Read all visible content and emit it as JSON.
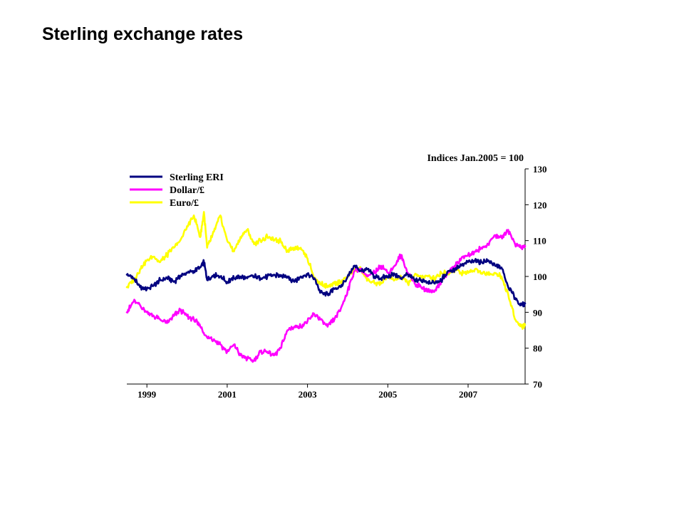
{
  "slide": {
    "title": "Sterling exchange rates"
  },
  "chart_data": {
    "type": "line",
    "title": "",
    "ylabel": "Indices Jan.2005 = 100",
    "xlabel": "",
    "ylim": [
      70,
      130
    ],
    "yticks": [
      130,
      120,
      110,
      100,
      90,
      80,
      70
    ],
    "xlim": [
      1998.5,
      2008.42
    ],
    "xticks": [
      1999,
      2001,
      2003,
      2005,
      2007
    ],
    "y_axis_side": "right",
    "grid": false,
    "legend_position": "top-left",
    "series": [
      {
        "name": "Sterling ERI",
        "color": "#000080",
        "x": [
          1998.5,
          1998.67,
          1998.83,
          1999.0,
          1999.17,
          1999.33,
          1999.5,
          1999.67,
          1999.83,
          2000.0,
          2000.17,
          2000.33,
          2000.42,
          2000.5,
          2000.67,
          2000.83,
          2001.0,
          2001.17,
          2001.33,
          2001.5,
          2001.67,
          2001.83,
          2002.0,
          2002.17,
          2002.33,
          2002.5,
          2002.67,
          2002.83,
          2003.0,
          2003.17,
          2003.33,
          2003.5,
          2003.67,
          2003.83,
          2004.0,
          2004.17,
          2004.33,
          2004.5,
          2004.67,
          2004.83,
          2005.0,
          2005.17,
          2005.33,
          2005.5,
          2005.67,
          2005.83,
          2006.0,
          2006.17,
          2006.33,
          2006.5,
          2006.67,
          2006.83,
          2007.0,
          2007.17,
          2007.33,
          2007.5,
          2007.67,
          2007.83,
          2008.0,
          2008.17,
          2008.33,
          2008.42
        ],
        "values": [
          100.5,
          99.5,
          97,
          96.5,
          97.5,
          99,
          99.5,
          98.5,
          100,
          101,
          101.5,
          102.5,
          104,
          99,
          100.5,
          100,
          98.5,
          99.5,
          100,
          99.5,
          100,
          99.5,
          100,
          100.5,
          100,
          100,
          98.5,
          100,
          100.5,
          99.5,
          95.5,
          95,
          96.5,
          97,
          100,
          103,
          101.5,
          102,
          100,
          99.5,
          100,
          100.5,
          99.5,
          100.5,
          99,
          99,
          98.5,
          98,
          99,
          101.5,
          102,
          103,
          104,
          104.5,
          104,
          104.5,
          103,
          102.5,
          97,
          94,
          92,
          92.5
        ]
      },
      {
        "name": "Dollar/£",
        "color": "#ff00ff",
        "x": [
          1998.5,
          1998.67,
          1998.83,
          1999.0,
          1999.17,
          1999.33,
          1999.5,
          1999.67,
          1999.83,
          2000.0,
          2000.17,
          2000.33,
          2000.5,
          2000.67,
          2000.83,
          2001.0,
          2001.17,
          2001.33,
          2001.5,
          2001.67,
          2001.83,
          2002.0,
          2002.17,
          2002.33,
          2002.5,
          2002.67,
          2002.83,
          2003.0,
          2003.17,
          2003.33,
          2003.5,
          2003.67,
          2003.83,
          2004.0,
          2004.17,
          2004.33,
          2004.5,
          2004.67,
          2004.83,
          2005.0,
          2005.17,
          2005.33,
          2005.5,
          2005.67,
          2005.83,
          2006.0,
          2006.17,
          2006.33,
          2006.5,
          2006.67,
          2006.83,
          2007.0,
          2007.17,
          2007.33,
          2007.5,
          2007.67,
          2007.83,
          2008.0,
          2008.17,
          2008.33,
          2008.42
        ],
        "values": [
          90,
          93,
          92,
          90,
          89,
          88,
          87,
          89,
          90.5,
          89,
          88,
          86,
          83,
          82.5,
          81,
          79,
          81,
          78,
          77,
          76.5,
          79,
          79,
          78,
          80,
          85,
          86,
          86,
          87.5,
          89.5,
          88,
          86,
          88,
          91,
          96,
          101.5,
          102,
          100,
          101,
          103,
          101,
          103,
          106,
          101,
          98,
          97,
          96,
          96,
          98.5,
          101,
          103,
          105,
          106,
          107,
          108,
          109,
          111.5,
          111,
          113,
          109,
          108,
          108.5
        ]
      },
      {
        "name": "Euro/£",
        "color": "#ffff00",
        "x": [
          1998.5,
          1998.67,
          1998.83,
          1999.0,
          1999.17,
          1999.33,
          1999.5,
          1999.67,
          1999.83,
          2000.0,
          2000.17,
          2000.33,
          2000.42,
          2000.5,
          2000.67,
          2000.83,
          2001.0,
          2001.17,
          2001.33,
          2001.5,
          2001.67,
          2001.83,
          2002.0,
          2002.17,
          2002.33,
          2002.5,
          2002.67,
          2002.83,
          2003.0,
          2003.17,
          2003.33,
          2003.5,
          2003.67,
          2003.83,
          2004.0,
          2004.17,
          2004.33,
          2004.5,
          2004.67,
          2004.83,
          2005.0,
          2005.17,
          2005.33,
          2005.5,
          2005.67,
          2005.83,
          2006.0,
          2006.17,
          2006.33,
          2006.5,
          2006.67,
          2006.83,
          2007.0,
          2007.17,
          2007.33,
          2007.5,
          2007.67,
          2007.83,
          2008.0,
          2008.17,
          2008.33,
          2008.42
        ],
        "values": [
          97,
          99,
          102,
          104.5,
          105.5,
          104,
          106,
          108,
          110,
          114,
          117,
          111,
          118,
          108,
          112.5,
          117,
          110,
          107,
          111,
          113,
          109,
          110,
          111,
          110,
          110,
          107,
          108,
          108,
          105,
          99.5,
          98,
          97,
          98,
          98.5,
          100,
          102,
          102,
          99,
          98,
          98,
          100,
          99,
          100,
          98,
          100.5,
          100,
          100,
          99.5,
          101,
          101,
          102,
          101,
          101,
          102,
          101,
          100.5,
          101,
          100,
          95,
          88,
          86,
          86.5
        ]
      }
    ]
  }
}
